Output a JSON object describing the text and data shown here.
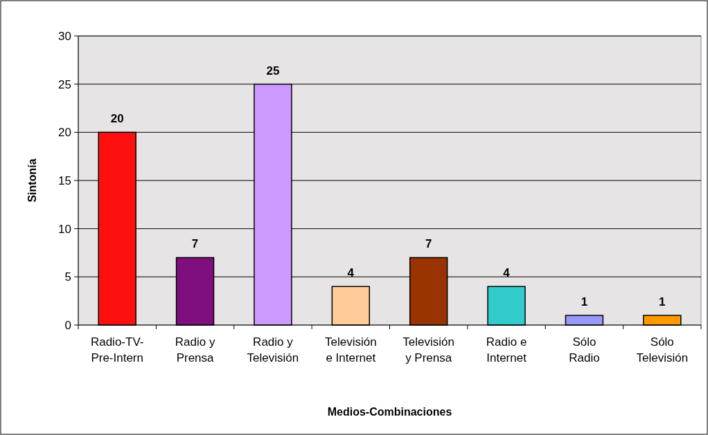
{
  "chart_data": {
    "type": "bar",
    "xlabel": "Medios-Combinaciones",
    "ylabel": "Sintonía",
    "categories": [
      "Radio-TV-\nPre-Intern",
      "Radio y\nPrensa",
      "Radio y\nTelevisión",
      "Televisión\ne Internet",
      "Televisión\ny Prensa",
      "Radio e\nInternet",
      "Sólo\nRadio",
      "Sólo\nTelevisión"
    ],
    "values": [
      20,
      7,
      25,
      4,
      7,
      4,
      1,
      1
    ],
    "colors": [
      "#ff1010",
      "#7f0f7f",
      "#cc99ff",
      "#ffcc99",
      "#993300",
      "#33cccc",
      "#9999ff",
      "#ff9900"
    ],
    "ylim": [
      0,
      30
    ],
    "yticks": [
      0,
      5,
      10,
      15,
      20,
      25,
      30
    ],
    "grid": "y",
    "data_labels": true
  }
}
